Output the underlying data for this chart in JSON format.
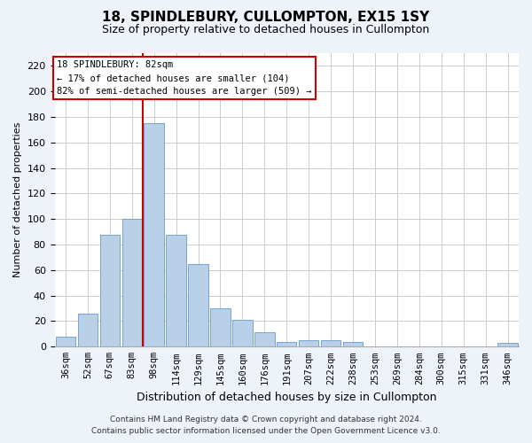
{
  "title": "18, SPINDLEBURY, CULLOMPTON, EX15 1SY",
  "subtitle": "Size of property relative to detached houses in Cullompton",
  "xlabel": "Distribution of detached houses by size in Cullompton",
  "ylabel": "Number of detached properties",
  "categories": [
    "36sqm",
    "52sqm",
    "67sqm",
    "83sqm",
    "98sqm",
    "114sqm",
    "129sqm",
    "145sqm",
    "160sqm",
    "176sqm",
    "191sqm",
    "207sqm",
    "222sqm",
    "238sqm",
    "253sqm",
    "269sqm",
    "284sqm",
    "300sqm",
    "315sqm",
    "331sqm",
    "346sqm"
  ],
  "values": [
    8,
    26,
    88,
    100,
    175,
    88,
    65,
    30,
    21,
    11,
    4,
    5,
    5,
    4,
    0,
    0,
    0,
    0,
    0,
    0,
    3
  ],
  "bar_color": "#b8d0e8",
  "bar_edge_color": "#6699cc",
  "red_line_index": 3,
  "red_line_color": "#cc0000",
  "ylim": [
    0,
    230
  ],
  "yticks": [
    0,
    20,
    40,
    60,
    80,
    100,
    120,
    140,
    160,
    180,
    200,
    220
  ],
  "annotation_text": "18 SPINDLEBURY: 82sqm\n← 17% of detached houses are smaller (104)\n82% of semi-detached houses are larger (509) →",
  "annotation_box_color": "#ffffff",
  "annotation_box_edge": "#cc0000",
  "footer_line1": "Contains HM Land Registry data © Crown copyright and database right 2024.",
  "footer_line2": "Contains public sector information licensed under the Open Government Licence v3.0.",
  "background_color": "#eef2f9",
  "plot_bg_color": "#ffffff",
  "grid_color": "#cccccc",
  "title_fontsize": 11,
  "subtitle_fontsize": 9,
  "ylabel_fontsize": 8,
  "xlabel_fontsize": 9,
  "tick_fontsize": 8,
  "xtick_fontsize": 7.5,
  "annotation_fontsize": 7.5,
  "footer_fontsize": 6.5
}
